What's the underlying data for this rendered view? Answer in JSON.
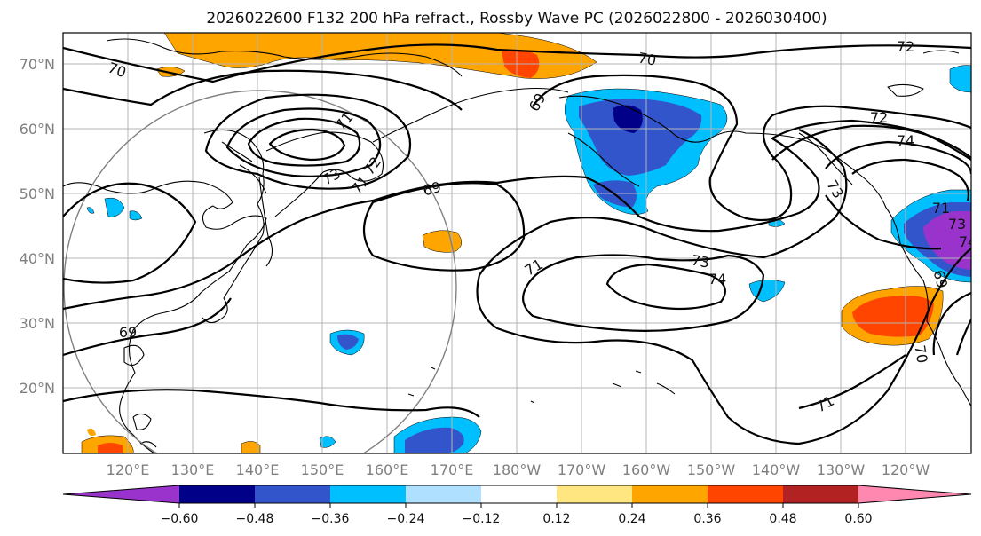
{
  "title": "2026022600 F132 200 hPa refract., Rossby Wave PC (2026022800 - 2026030400)",
  "map": {
    "lat_labels": [
      "70°N",
      "60°N",
      "50°N",
      "40°N",
      "30°N",
      "20°N"
    ],
    "lon_labels": [
      "120°E",
      "130°E",
      "140°E",
      "150°E",
      "160°E",
      "170°E",
      "180°W",
      "170°W",
      "160°W",
      "150°W",
      "140°W",
      "130°W",
      "120°W"
    ],
    "contour_labels": [
      "70",
      "70",
      "72",
      "72",
      "74",
      "71",
      "73",
      "72",
      "71",
      "69",
      "69",
      "73",
      "71",
      "73",
      "74",
      "69",
      "69",
      "71",
      "73",
      "74",
      "70",
      "71"
    ],
    "colors": {
      "shading": [
        "#9933cc",
        "#000088",
        "#3355cc",
        "#00bfff",
        "#b0e0ff",
        "#ffffff",
        "#ffe680",
        "#ffa500",
        "#ff4500",
        "#b22222",
        "#ff88b0"
      ],
      "contour": "#000000",
      "grid": "#b4b4b4"
    }
  },
  "colorbar": {
    "ticks": [
      "−0.60",
      "−0.48",
      "−0.36",
      "−0.24",
      "−0.12",
      "0.12",
      "0.24",
      "0.36",
      "0.48",
      "0.60"
    ],
    "colors": [
      "#9933cc",
      "#000088",
      "#3355cc",
      "#00bfff",
      "#b0e0ff",
      "#ffffff",
      "#ffe680",
      "#ffa500",
      "#ff4500",
      "#b22222",
      "#ff88b0"
    ]
  }
}
